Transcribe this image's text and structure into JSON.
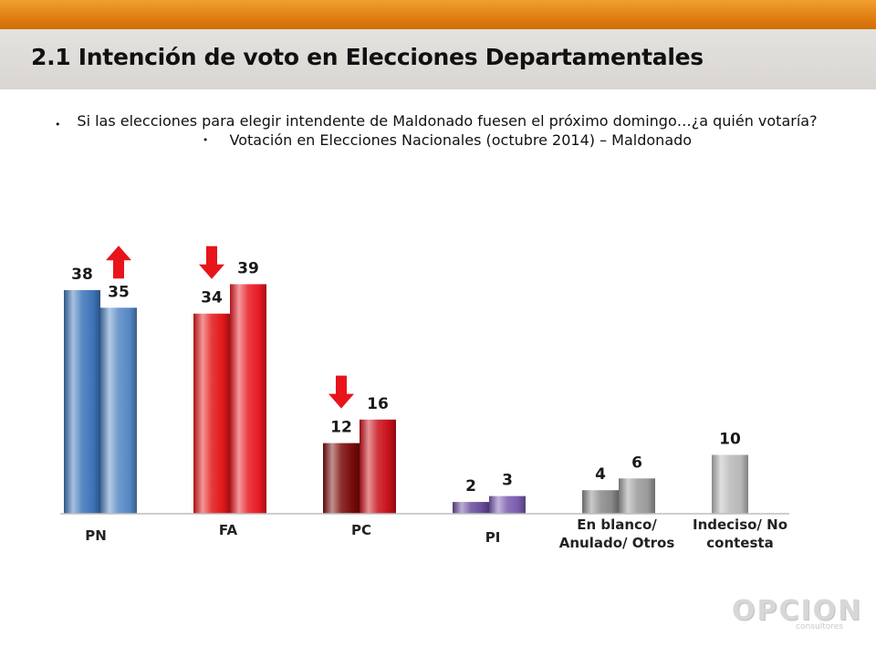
{
  "header": {
    "title": "2.1 Intención de voto en Elecciones Departamentales"
  },
  "bullets": [
    "Si las elecciones para elegir intendente de Maldonado fuesen el próximo domingo…¿a quién votaría?",
    "Votación en Elecciones Nacionales (octubre 2014) – Maldonado"
  ],
  "logo": {
    "name": "OPCION",
    "subtitle": "consultores"
  },
  "chart_data": {
    "type": "bar",
    "categories": [
      "PN",
      "FA",
      "PC",
      "PI",
      "En blanco/ Anulado/ Otros",
      "Indeciso/ No contesta"
    ],
    "category_label_lines": [
      [
        "PN"
      ],
      [
        "FA"
      ],
      [
        "PC"
      ],
      [
        "PI"
      ],
      [
        "En blanco/",
        "Anulado/ Otros"
      ],
      [
        "Indeciso/ No",
        "contesta"
      ]
    ],
    "series": [
      {
        "values": [
          38,
          34,
          12,
          2,
          4,
          10
        ]
      },
      {
        "values": [
          35,
          39,
          16,
          3,
          6,
          null
        ]
      }
    ],
    "bar_colors": [
      [
        "#3d74b8",
        "#e21818",
        "#7a0a0a",
        "#6a4c9c",
        "#8a8a8a",
        "#b8b8b8"
      ],
      [
        "#5588c4",
        "#e81a24",
        "#c8101a",
        "#7a5aae",
        "#9a9a9a",
        null
      ]
    ],
    "change_arrows": [
      {
        "category": "PN",
        "direction": "up",
        "color": "#e8141c"
      },
      {
        "category": "FA",
        "direction": "down",
        "color": "#e8141c"
      },
      {
        "category": "PC",
        "direction": "down",
        "color": "#e8141c"
      }
    ],
    "data_labels": true,
    "grid": false,
    "legend": "none",
    "title": "",
    "xlabel": "",
    "ylabel": ""
  }
}
